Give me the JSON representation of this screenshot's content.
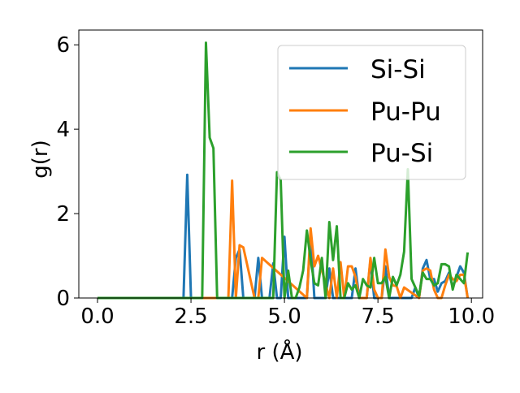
{
  "chart_data": {
    "type": "line",
    "title": "",
    "xlabel": "r (Å)",
    "ylabel": "g(r)",
    "xlim": [
      -0.5,
      10.3
    ],
    "ylim": [
      0,
      6.35
    ],
    "xticks": [
      0.0,
      2.5,
      5.0,
      7.5,
      10.0
    ],
    "xtick_labels": [
      "0.0",
      "2.5",
      "5.0",
      "7.5",
      "10.0"
    ],
    "yticks": [
      0,
      2,
      4,
      6
    ],
    "ytick_labels": [
      "0",
      "2",
      "4",
      "6"
    ],
    "grid": false,
    "legend_position": "top-right",
    "series": [
      {
        "name": "Si-Si",
        "color": "#1f77b4",
        "x": [
          0,
          2.2,
          2.3,
          2.4,
          2.5,
          3.6,
          3.7,
          3.8,
          3.9,
          4.2,
          4.3,
          4.4,
          4.6,
          4.7,
          4.8,
          4.9,
          5.0,
          5.1,
          5.6,
          5.7,
          5.8,
          6.1,
          6.2,
          6.3,
          6.8,
          6.9,
          7.0,
          7.2,
          7.3,
          7.4,
          7.6,
          7.7,
          7.8,
          8.4,
          8.5,
          8.6,
          8.7,
          8.8,
          8.9,
          9.0,
          9.1,
          9.2,
          9.3,
          9.4,
          9.5,
          9.6,
          9.7,
          9.8,
          9.9
        ],
        "y": [
          0,
          0,
          0,
          2.92,
          0,
          0,
          0.95,
          1.15,
          0,
          0,
          0.95,
          0,
          0,
          0.82,
          0,
          0,
          1.45,
          0,
          0,
          1.5,
          0,
          0,
          0.7,
          0,
          0,
          0.7,
          0,
          0,
          0.9,
          0,
          0,
          0.75,
          0,
          0,
          0.25,
          0,
          0.7,
          0.9,
          0.45,
          0.45,
          0.15,
          0.35,
          0.4,
          0.6,
          0.25,
          0.5,
          0.75,
          0.6,
          0
        ]
      },
      {
        "name": "Pu-Pu",
        "color": "#ff7f0e",
        "x": [
          0,
          3.4,
          3.5,
          3.6,
          3.7,
          3.8,
          3.9,
          4.2,
          4.3,
          4.4,
          5.6,
          5.7,
          5.8,
          5.9,
          6.2,
          6.3,
          6.4,
          6.5,
          6.6,
          6.7,
          6.8,
          6.9,
          7.0,
          7.2,
          7.3,
          7.4,
          7.5,
          7.6,
          7.7,
          7.8,
          7.9,
          8.0,
          8.1,
          8.2,
          8.6,
          8.7,
          8.8,
          8.9,
          9.0,
          9.1,
          9.2,
          9.3,
          9.4,
          9.5,
          9.6,
          9.7,
          9.8,
          9.9
        ],
        "y": [
          0,
          0,
          0,
          2.78,
          0,
          1.25,
          1.2,
          0,
          0,
          0.95,
          0,
          1.65,
          0.75,
          1.0,
          0,
          0.7,
          0,
          0.85,
          0,
          0.75,
          0.75,
          0.5,
          0,
          0,
          0.95,
          0.2,
          0,
          0,
          1.15,
          0.5,
          0.3,
          0.28,
          0,
          0.25,
          0,
          0.65,
          0.7,
          0.65,
          0.2,
          0,
          0,
          0.3,
          0.55,
          0.45,
          0.4,
          0.55,
          0.55,
          0
        ]
      },
      {
        "name": "Pu-Si",
        "color": "#2ca02c",
        "x": [
          0,
          2.6,
          2.7,
          2.8,
          2.9,
          3.0,
          3.1,
          3.2,
          3.3,
          4.6,
          4.7,
          4.8,
          4.9,
          5.0,
          5.1,
          5.2,
          5.3,
          5.4,
          5.5,
          5.6,
          5.7,
          5.8,
          5.9,
          6.0,
          6.1,
          6.2,
          6.3,
          6.4,
          6.5,
          6.6,
          6.7,
          6.8,
          6.9,
          7.0,
          7.1,
          7.2,
          7.3,
          7.4,
          7.5,
          7.6,
          7.7,
          7.8,
          7.9,
          8.0,
          8.1,
          8.2,
          8.3,
          8.4,
          8.5,
          8.6,
          8.7,
          8.8,
          8.9,
          9.0,
          9.1,
          9.2,
          9.3,
          9.4,
          9.5,
          9.6,
          9.7,
          9.8,
          9.9
        ],
        "y": [
          0,
          0,
          0,
          0,
          6.05,
          3.8,
          3.55,
          0,
          0,
          0,
          0,
          2.98,
          2.8,
          0,
          0.65,
          0,
          0,
          0.25,
          0.65,
          1.6,
          0.9,
          0.35,
          0.3,
          0.95,
          0,
          1.8,
          0.9,
          1.7,
          0,
          0,
          0.35,
          0.2,
          0.3,
          0,
          0.45,
          0.3,
          0.25,
          0.95,
          0.35,
          0.35,
          0.5,
          0,
          0.5,
          0.3,
          0.55,
          1.1,
          3.05,
          0.45,
          0.25,
          0.05,
          0.6,
          0.45,
          0.45,
          0.3,
          0.35,
          0.8,
          0.8,
          0.75,
          0.2,
          0.55,
          0.45,
          0.35,
          1.08
        ]
      }
    ]
  }
}
